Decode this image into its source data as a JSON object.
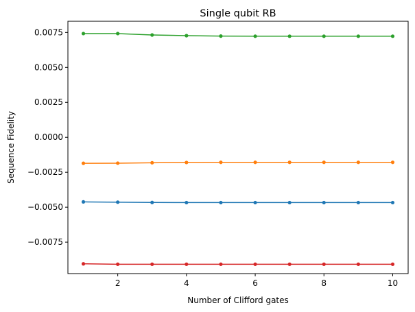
{
  "chart_data": {
    "type": "line",
    "title": "Single qubit RB",
    "xlabel": "Number of Clifford gates",
    "ylabel": "Sequence Fidelity",
    "x": [
      1,
      2,
      3,
      4,
      5,
      6,
      7,
      8,
      9,
      10
    ],
    "xlim": [
      0.55,
      10.45
    ],
    "ylim": [
      -0.00975,
      0.0083
    ],
    "xticks": [
      2,
      4,
      6,
      8,
      10
    ],
    "xtick_labels": [
      "2",
      "4",
      "6",
      "8",
      "10"
    ],
    "yticks": [
      -0.0075,
      -0.005,
      -0.0025,
      0.0,
      0.0025,
      0.005,
      0.0075
    ],
    "ytick_labels": [
      "−0.0075",
      "−0.0050",
      "−0.0025",
      "0.0000",
      "0.0025",
      "0.0050",
      "0.0075"
    ],
    "grid": false,
    "legend": false,
    "marker": "dot",
    "series": [
      {
        "color": "#1f77b4",
        "values": [
          -0.00462,
          -0.00464,
          -0.00466,
          -0.00467,
          -0.00467,
          -0.00467,
          -0.00467,
          -0.00467,
          -0.00467,
          -0.00467
        ]
      },
      {
        "color": "#ff7f0e",
        "values": [
          -0.00186,
          -0.00185,
          -0.00182,
          -0.0018,
          -0.00179,
          -0.00179,
          -0.00179,
          -0.00179,
          -0.00179,
          -0.00179
        ]
      },
      {
        "color": "#2ca02c",
        "values": [
          0.00742,
          0.00742,
          0.00732,
          0.00727,
          0.00724,
          0.00723,
          0.00723,
          0.00723,
          0.00723,
          0.00723
        ]
      },
      {
        "color": "#d62728",
        "values": [
          -0.00905,
          -0.00908,
          -0.00908,
          -0.00908,
          -0.00908,
          -0.00908,
          -0.00908,
          -0.00908,
          -0.00908,
          -0.00908
        ]
      }
    ]
  }
}
